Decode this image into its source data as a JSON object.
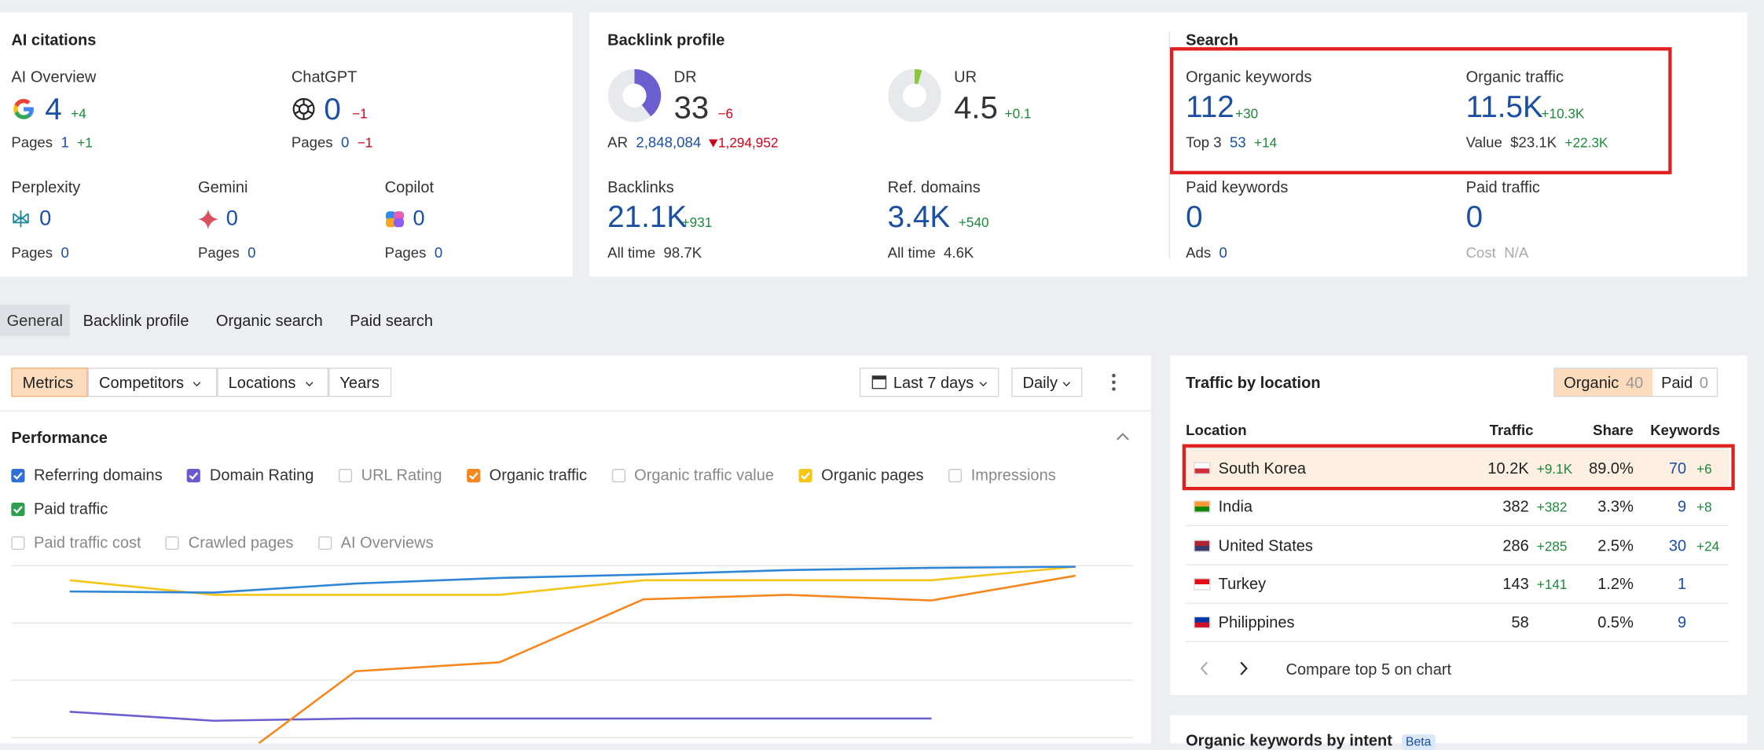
{
  "ai_citations": {
    "title": "AI citations",
    "ai_overview": {
      "label": "AI Overview",
      "value": "4",
      "delta": "+4",
      "pages_label": "Pages",
      "pages": "1",
      "pages_delta": "+1"
    },
    "chatgpt": {
      "label": "ChatGPT",
      "value": "0",
      "delta": "−1",
      "pages_label": "Pages",
      "pages": "0",
      "pages_delta": "−1"
    },
    "perplexity": {
      "label": "Perplexity",
      "value": "0",
      "pages_label": "Pages",
      "pages": "0"
    },
    "gemini": {
      "label": "Gemini",
      "value": "0",
      "pages_label": "Pages",
      "pages": "0"
    },
    "copilot": {
      "label": "Copilot",
      "value": "0",
      "pages_label": "Pages",
      "pages": "0"
    }
  },
  "backlink_profile": {
    "title": "Backlink profile",
    "dr": {
      "label": "DR",
      "value": "33",
      "delta": "−6"
    },
    "ar": {
      "label": "AR",
      "value": "2,848,084",
      "delta": "1,294,952"
    },
    "ur": {
      "label": "UR",
      "value": "4.5",
      "delta": "+0.1"
    },
    "backlinks": {
      "label": "Backlinks",
      "value": "21.1K",
      "delta": "+931",
      "sub_label": "All time",
      "sub_value": "98.7K"
    },
    "ref_domains": {
      "label": "Ref. domains",
      "value": "3.4K",
      "delta": "+540",
      "sub_label": "All time",
      "sub_value": "4.6K"
    }
  },
  "search": {
    "title": "Search",
    "organic_keywords": {
      "label": "Organic keywords",
      "value": "112",
      "delta": "+30",
      "sub_label": "Top 3",
      "sub_value": "53",
      "sub_delta": "+14"
    },
    "organic_traffic": {
      "label": "Organic traffic",
      "value": "11.5K",
      "delta": "+10.3K",
      "sub_label": "Value",
      "sub_value": "$23.1K",
      "sub_delta": "+22.3K"
    },
    "paid_keywords": {
      "label": "Paid keywords",
      "value": "0",
      "sub_label": "Ads",
      "sub_value": "0"
    },
    "paid_traffic": {
      "label": "Paid traffic",
      "value": "0",
      "sub_label": "Cost",
      "sub_value": "N/A"
    }
  },
  "tabs": [
    "General",
    "Backlink profile",
    "Organic search",
    "Paid search"
  ],
  "toolbar": {
    "views": [
      "Metrics",
      "Competitors",
      "Locations",
      "Years"
    ],
    "period": "Last 7 days",
    "interval": "Daily"
  },
  "performance": {
    "title": "Performance",
    "metrics": [
      {
        "label": "Referring domains",
        "checked": true,
        "color": "#2f6fd6"
      },
      {
        "label": "Domain Rating",
        "checked": true,
        "color": "#6a5acd"
      },
      {
        "label": "URL Rating",
        "checked": false
      },
      {
        "label": "Organic traffic",
        "checked": true,
        "color": "#f5871f"
      },
      {
        "label": "Organic traffic value",
        "checked": false
      },
      {
        "label": "Organic pages",
        "checked": true,
        "color": "#f5c518"
      },
      {
        "label": "Impressions",
        "checked": false
      },
      {
        "label": "Paid traffic",
        "checked": true,
        "color": "#2e9e4f"
      },
      {
        "label": "Paid traffic cost",
        "checked": false
      },
      {
        "label": "Crawled pages",
        "checked": false
      },
      {
        "label": "AI Overviews",
        "checked": false
      }
    ]
  },
  "traffic_by_location": {
    "title": "Traffic by location",
    "toggle": [
      {
        "label": "Organic",
        "count": "40"
      },
      {
        "label": "Paid",
        "count": "0"
      }
    ],
    "headers": [
      "Location",
      "Traffic",
      "Share",
      "Keywords"
    ],
    "rows": [
      {
        "location": "South Korea",
        "traffic": "10.2K",
        "traffic_delta": "+9.1K",
        "share": "89.0%",
        "keywords": "70",
        "keywords_delta": "+6"
      },
      {
        "location": "India",
        "traffic": "382",
        "traffic_delta": "+382",
        "share": "3.3%",
        "keywords": "9",
        "keywords_delta": "+8"
      },
      {
        "location": "United States",
        "traffic": "286",
        "traffic_delta": "+285",
        "share": "2.5%",
        "keywords": "30",
        "keywords_delta": "+24"
      },
      {
        "location": "Turkey",
        "traffic": "143",
        "traffic_delta": "+141",
        "share": "1.2%",
        "keywords": "1"
      },
      {
        "location": "Philippines",
        "traffic": "58",
        "share": "0.5%",
        "keywords": "9"
      }
    ],
    "compare": "Compare top 5 on chart"
  },
  "intent": {
    "title": "Organic keywords by intent",
    "badge": "Beta"
  }
}
